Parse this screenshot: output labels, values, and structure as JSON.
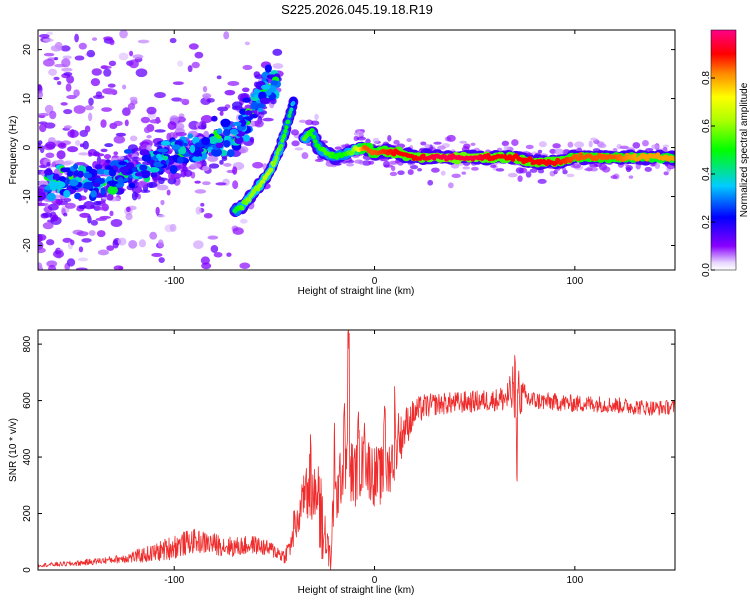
{
  "title": "S225.2026.045.19.18.R19",
  "colors": {
    "snr_line": "#ef2b2b",
    "axis": "#000000",
    "background": "#ffffff"
  },
  "chart_data": [
    {
      "type": "heatmap",
      "name": "spectrogram",
      "xlabel": "Height of straight line (km)",
      "ylabel": "Frequency (Hz)",
      "xlim": [
        -168,
        150
      ],
      "ylim": [
        -25,
        24
      ],
      "xticks": [
        -100,
        0,
        100
      ],
      "yticks": [
        -20,
        -10,
        0,
        10,
        20
      ],
      "colorbar": {
        "label": "Normalized spectral amplitude",
        "range": [
          0,
          1
        ],
        "ticks": [
          "0.0",
          "0.2",
          "0.4",
          "0.6",
          "0.8"
        ],
        "colormap": [
          "#ff00ff",
          "#8800ff",
          "#0000ff",
          "#00ffff",
          "#00ff00",
          "#ffff00",
          "#ff0000",
          "#ff0088"
        ]
      },
      "ridge_main": [
        [
          -168,
          -7
        ],
        [
          -150,
          -7
        ],
        [
          -135,
          -7
        ],
        [
          -125,
          -5
        ],
        [
          -115,
          -4
        ],
        [
          -105,
          -2.5
        ],
        [
          -98,
          -1
        ],
        [
          -90,
          -0.5
        ],
        [
          -82,
          1
        ],
        [
          -75,
          2
        ],
        [
          -70,
          3
        ],
        [
          -62,
          6
        ],
        [
          -55,
          12
        ],
        [
          -48,
          14
        ]
      ],
      "ridge_steep": [
        [
          -70,
          -13
        ],
        [
          -66,
          -12
        ],
        [
          -62,
          -10
        ],
        [
          -58,
          -8
        ],
        [
          -54,
          -6
        ],
        [
          -50,
          -3
        ],
        [
          -47,
          0
        ],
        [
          -44,
          4
        ],
        [
          -42,
          7
        ],
        [
          -40,
          10
        ]
      ],
      "ridge_flat": [
        [
          -35,
          2
        ],
        [
          -31,
          3
        ],
        [
          -28,
          0
        ],
        [
          -24,
          -1
        ],
        [
          -20,
          -2
        ],
        [
          -15,
          -1.5
        ],
        [
          -10,
          -0.5
        ],
        [
          -5,
          0
        ],
        [
          0,
          -1
        ],
        [
          10,
          -1
        ],
        [
          20,
          -2
        ],
        [
          30,
          -2
        ],
        [
          40,
          -2
        ],
        [
          50,
          -2
        ],
        [
          60,
          -2
        ],
        [
          70,
          -2
        ],
        [
          80,
          -3
        ],
        [
          90,
          -3
        ],
        [
          100,
          -2
        ],
        [
          110,
          -2
        ],
        [
          120,
          -2
        ],
        [
          130,
          -2
        ],
        [
          150,
          -2
        ]
      ],
      "ridge_steep_amp": [
        0.45,
        0.55,
        0.6,
        0.6,
        0.65,
        0.6,
        0.55,
        0.5,
        0.45,
        0.3
      ],
      "ridge_flat_amp": [
        0.55,
        0.5,
        0.5,
        0.55,
        0.5,
        0.5,
        0.6,
        0.85,
        0.85,
        0.9,
        0.9,
        0.95,
        0.95,
        0.95,
        0.9,
        0.9,
        0.9,
        0.9,
        0.85,
        0.85,
        0.85,
        0.8,
        0.8
      ]
    },
    {
      "type": "line",
      "name": "snr",
      "xlabel": "Height of straight line (km)",
      "ylabel": "SNR (10 * v/v)",
      "xlim": [
        -168,
        150
      ],
      "ylim": [
        0,
        850
      ],
      "xticks": [
        -100,
        0,
        100
      ],
      "yticks": [
        0,
        200,
        400,
        600,
        800
      ],
      "envelope": [
        [
          -168,
          15
        ],
        [
          -150,
          20
        ],
        [
          -120,
          40
        ],
        [
          -110,
          50
        ],
        [
          -100,
          70
        ],
        [
          -90,
          90
        ],
        [
          -80,
          80
        ],
        [
          -70,
          70
        ],
        [
          -60,
          80
        ],
        [
          -50,
          60
        ],
        [
          -45,
          40
        ],
        [
          -40,
          100
        ],
        [
          -35,
          250
        ],
        [
          -32,
          200
        ],
        [
          -28,
          300
        ],
        [
          -25,
          100
        ],
        [
          -22,
          30
        ],
        [
          -20,
          200
        ],
        [
          -15,
          350
        ],
        [
          -10,
          300
        ],
        [
          -5,
          350
        ],
        [
          0,
          300
        ],
        [
          5,
          300
        ],
        [
          10,
          380
        ],
        [
          15,
          480
        ],
        [
          20,
          540
        ],
        [
          25,
          565
        ],
        [
          30,
          575
        ],
        [
          40,
          580
        ],
        [
          50,
          585
        ],
        [
          60,
          590
        ],
        [
          70,
          595
        ],
        [
          80,
          590
        ],
        [
          90,
          585
        ],
        [
          100,
          580
        ],
        [
          110,
          580
        ],
        [
          120,
          575
        ],
        [
          130,
          570
        ],
        [
          140,
          565
        ],
        [
          150,
          570
        ]
      ],
      "noise": [
        [
          -168,
          10
        ],
        [
          -130,
          20
        ],
        [
          -110,
          50
        ],
        [
          -100,
          70
        ],
        [
          -80,
          60
        ],
        [
          -60,
          50
        ],
        [
          -45,
          40
        ],
        [
          -35,
          120
        ],
        [
          -28,
          150
        ],
        [
          -20,
          150
        ],
        [
          -10,
          180
        ],
        [
          0,
          170
        ],
        [
          10,
          150
        ],
        [
          20,
          80
        ],
        [
          30,
          60
        ],
        [
          60,
          60
        ],
        [
          65,
          80
        ],
        [
          70,
          140
        ],
        [
          75,
          80
        ],
        [
          80,
          50
        ],
        [
          150,
          40
        ]
      ],
      "spikes": [
        [
          -13,
          850
        ],
        [
          -15,
          590
        ],
        [
          -32,
          480
        ],
        [
          10,
          650
        ],
        [
          12,
          555
        ],
        [
          70,
          760
        ],
        [
          69,
          720
        ],
        [
          72,
          705
        ],
        [
          71,
          330
        ],
        [
          -8,
          560
        ],
        [
          -5,
          520
        ],
        [
          -20,
          520
        ],
        [
          5,
          580
        ],
        [
          -26,
          260
        ],
        [
          -34,
          360
        ],
        [
          -40,
          210
        ]
      ],
      "dips": [
        [
          -22,
          30
        ],
        [
          -26,
          40
        ],
        [
          -24,
          60
        ],
        [
          -27,
          80
        ]
      ]
    }
  ]
}
